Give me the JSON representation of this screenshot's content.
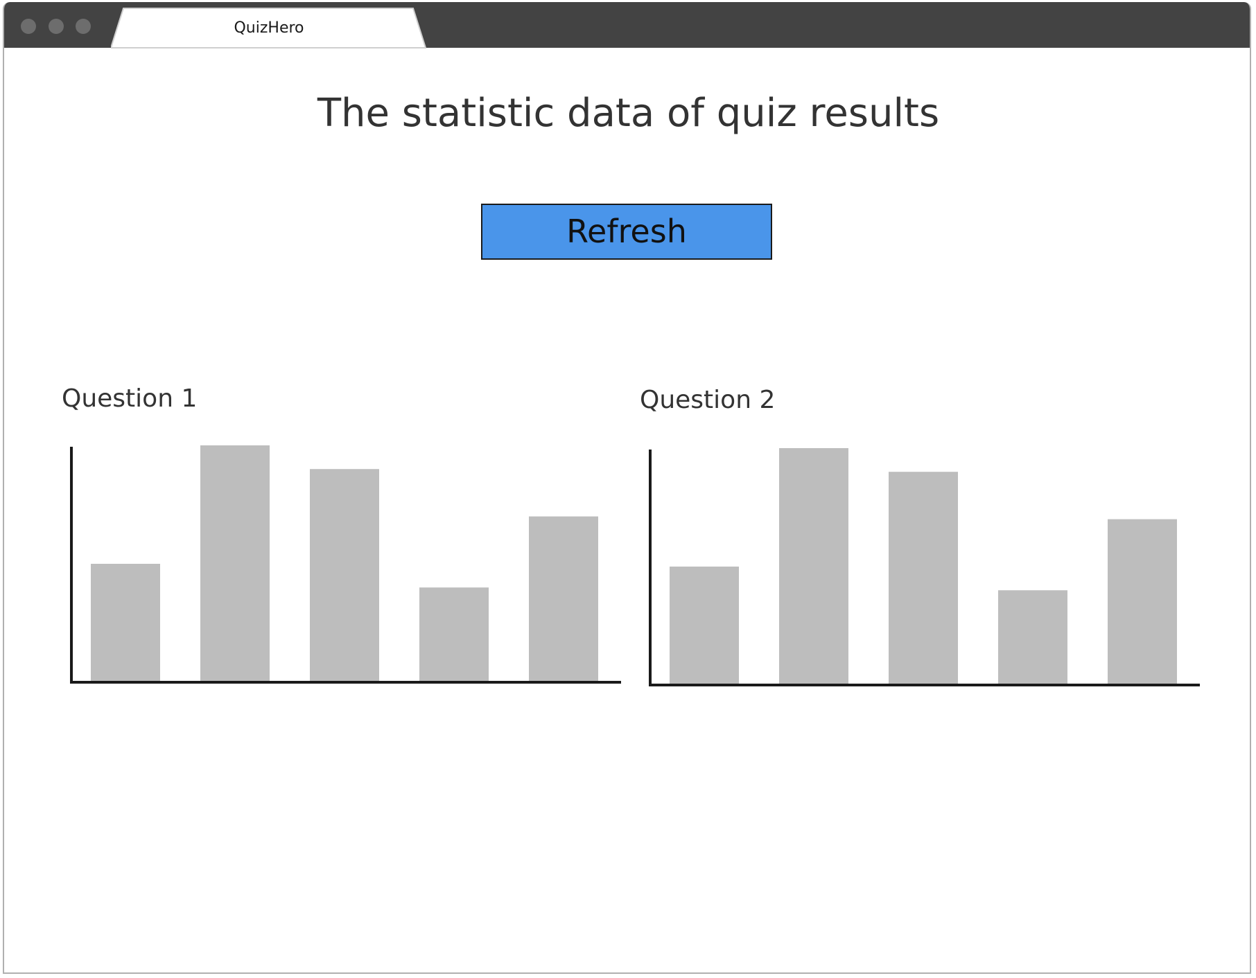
{
  "window": {
    "tab_title": "QuizHero"
  },
  "page": {
    "title": "The statistic data of quiz results",
    "refresh_label": "Refresh"
  },
  "colors": {
    "titlebar": "#434343",
    "button": "#4a95ea",
    "bar": "#bdbdbd",
    "axis": "#1a1a1a"
  },
  "chart_data": [
    {
      "type": "bar",
      "title": "Question 1",
      "categories": [
        "",
        "",
        "",
        "",
        ""
      ],
      "values": [
        5,
        10,
        9,
        4,
        7
      ],
      "xlabel": "",
      "ylabel": "",
      "ylim": [
        0,
        10
      ],
      "grid": false
    },
    {
      "type": "bar",
      "title": "Question 2",
      "categories": [
        "",
        "",
        "",
        "",
        ""
      ],
      "values": [
        5,
        10,
        9,
        4,
        7
      ],
      "xlabel": "",
      "ylabel": "",
      "ylim": [
        0,
        10
      ],
      "grid": false
    }
  ]
}
